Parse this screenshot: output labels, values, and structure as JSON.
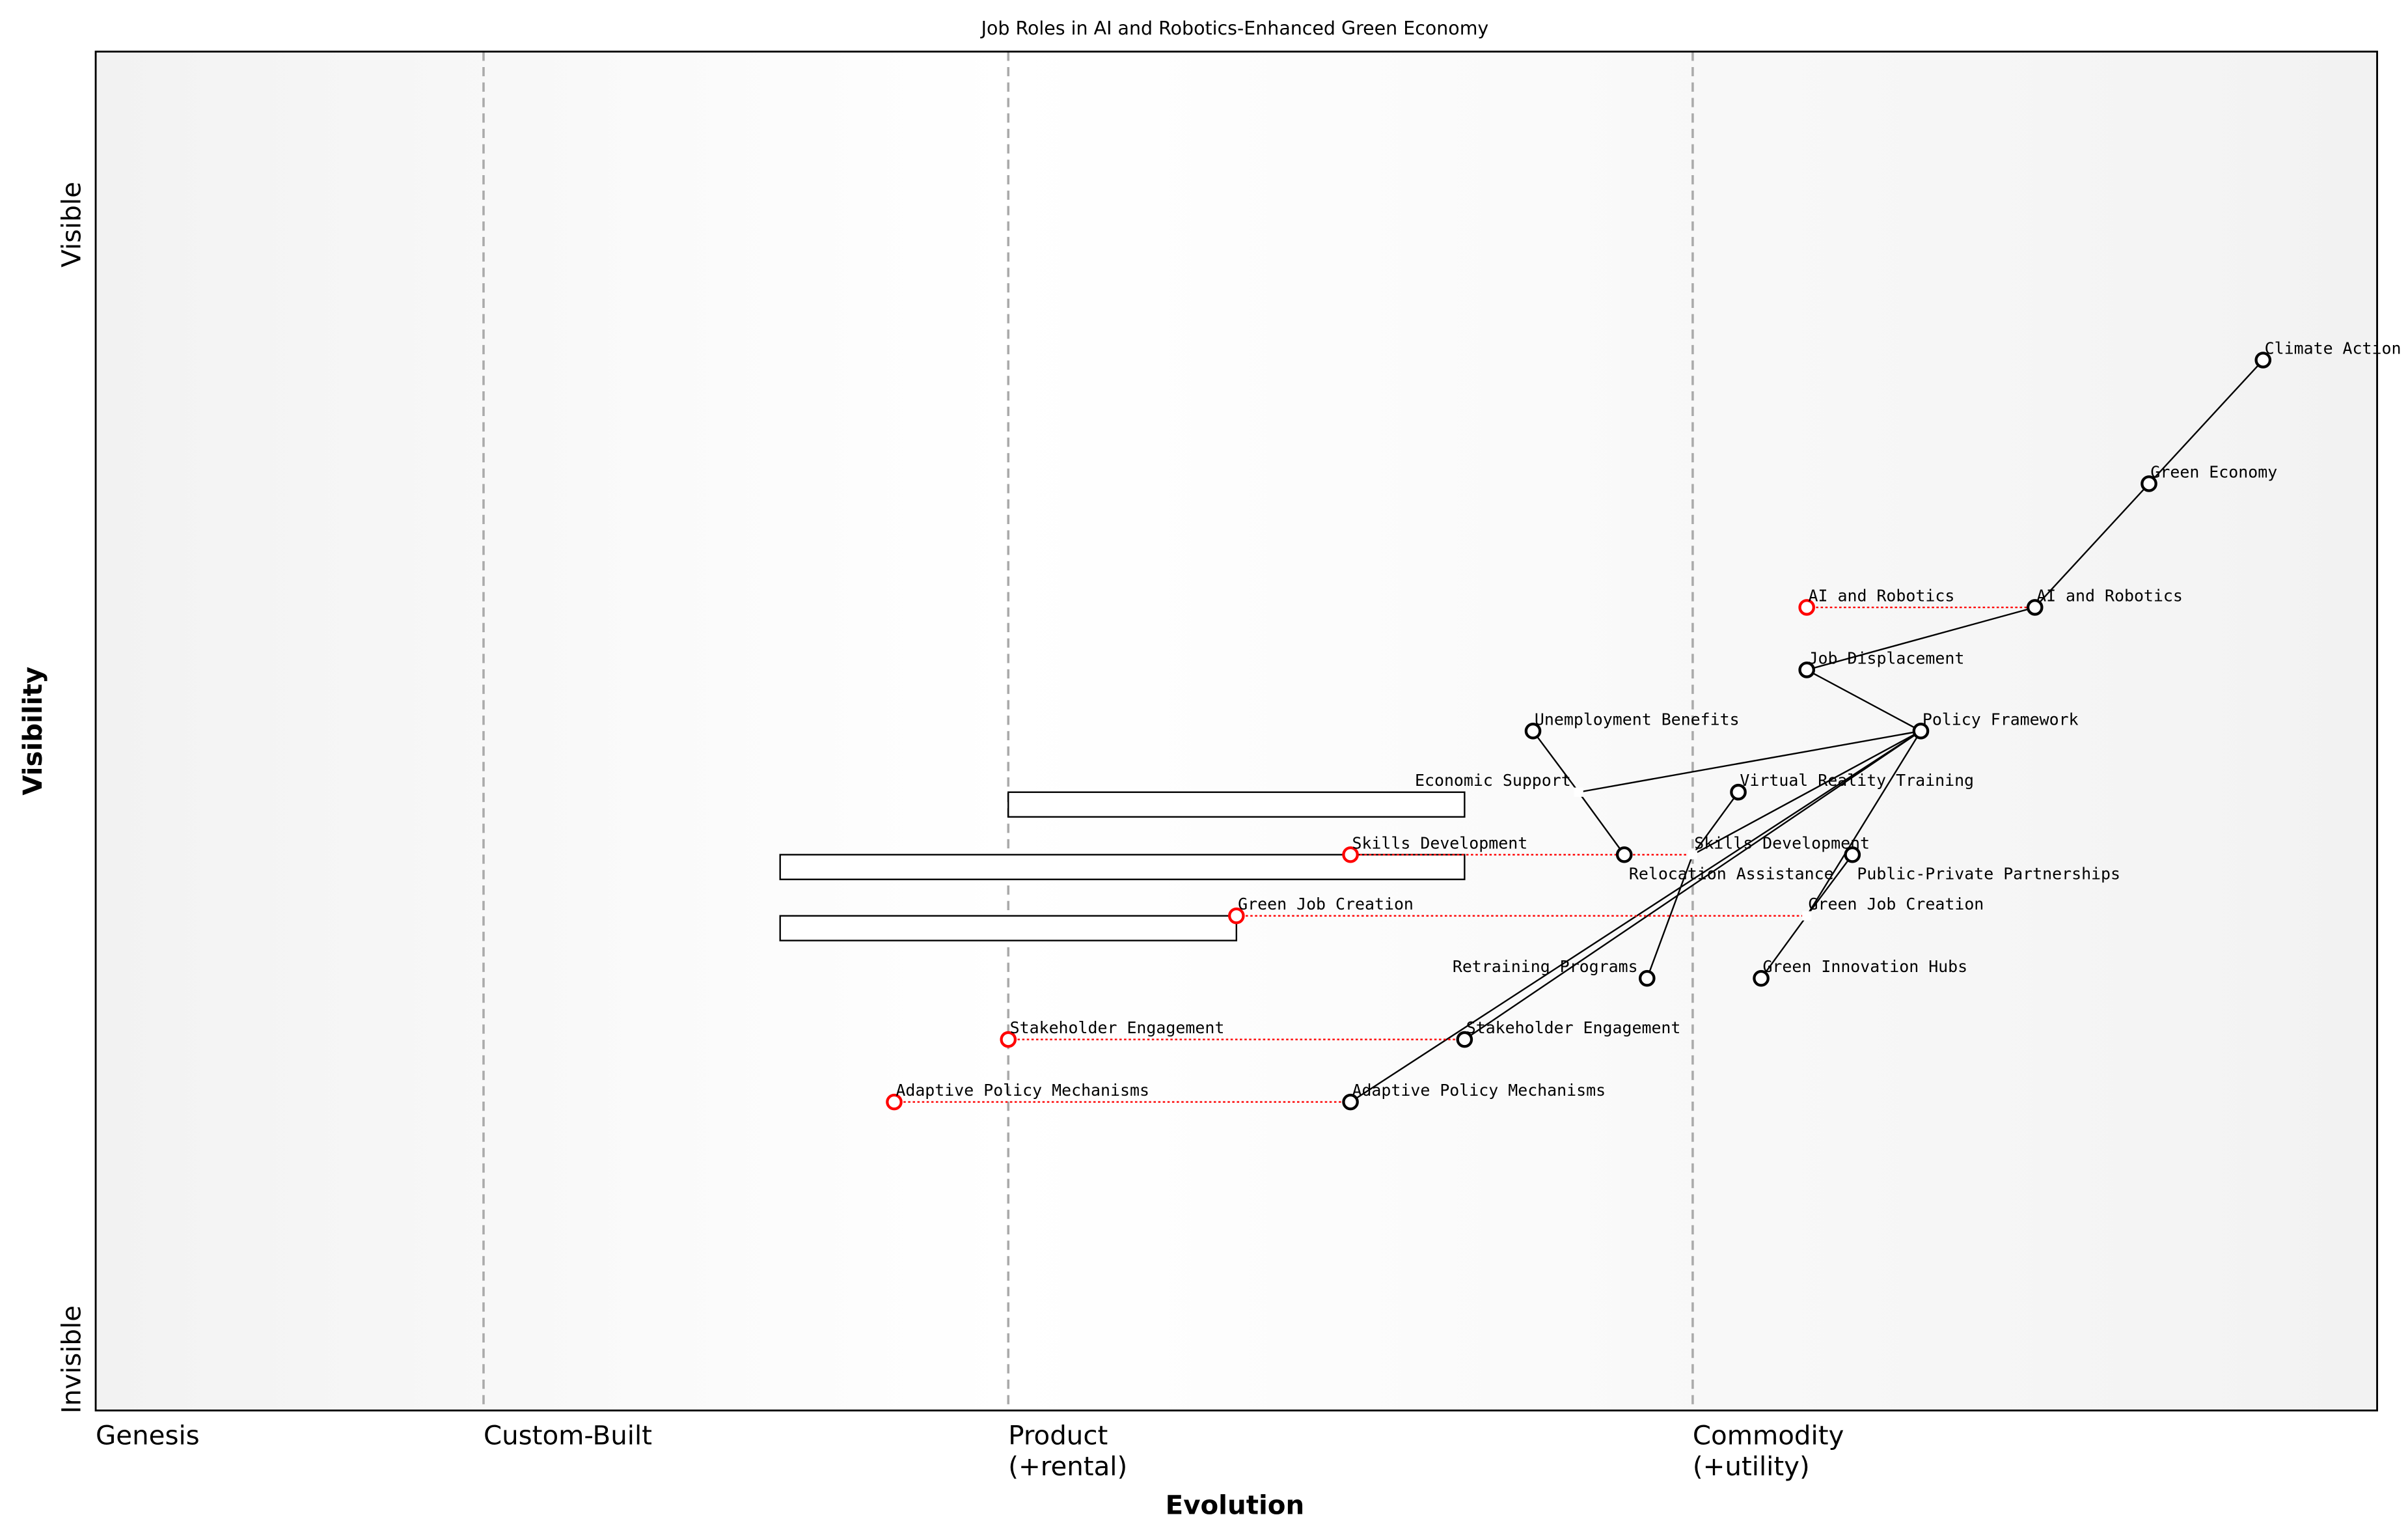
{
  "chart_data": {
    "type": "scatter",
    "subtype": "wardley-map",
    "title": "Job Roles in AI and Robotics-Enhanced Green Economy",
    "xlabel": "Evolution",
    "ylabel": "Visibility",
    "xlim": [
      0,
      1
    ],
    "ylim": [
      0,
      1
    ],
    "grid": false,
    "x_stages": [
      {
        "label": "Genesis",
        "x": 0.0
      },
      {
        "label": "Custom-Built",
        "x": 0.17
      },
      {
        "label": "Product\n(+rental)",
        "x": 0.4
      },
      {
        "label": "Commodity\n(+utility)",
        "x": 0.7
      }
    ],
    "y_ticks": {
      "top": "Visible",
      "bottom": "Invisible"
    },
    "colors": {
      "node": "#000000",
      "evolve": "#ff0000",
      "stage_line": "#aaaaaa"
    },
    "components": [
      {
        "name": "Climate Action",
        "x": 0.95,
        "y": 0.773,
        "marker": true
      },
      {
        "name": "Green Economy",
        "x": 0.9,
        "y": 0.682,
        "marker": true
      },
      {
        "name": "AI and Robotics",
        "x": 0.85,
        "y": 0.591,
        "marker": true
      },
      {
        "name": "Job Displacement",
        "x": 0.75,
        "y": 0.545,
        "marker": true
      },
      {
        "name": "Policy Framework",
        "x": 0.8,
        "y": 0.5,
        "marker": true
      },
      {
        "name": "Unemployment Benefits",
        "x": 0.63,
        "y": 0.5,
        "marker": true
      },
      {
        "name": "Economic Support",
        "x": 0.65,
        "y": 0.455,
        "marker": false
      },
      {
        "name": "Virtual Reality Training",
        "x": 0.72,
        "y": 0.455,
        "marker": true
      },
      {
        "name": "Relocation Assistance",
        "x": 0.67,
        "y": 0.409,
        "marker": true
      },
      {
        "name": "Skills Development",
        "x": 0.7,
        "y": 0.409,
        "marker": false
      },
      {
        "name": "Public-Private Partnerships",
        "x": 0.77,
        "y": 0.409,
        "marker": true
      },
      {
        "name": "Green Job Creation",
        "x": 0.75,
        "y": 0.364,
        "marker": false
      },
      {
        "name": "Retraining Programs",
        "x": 0.68,
        "y": 0.318,
        "marker": true
      },
      {
        "name": "Green Innovation Hubs",
        "x": 0.73,
        "y": 0.318,
        "marker": true
      },
      {
        "name": "Stakeholder Engagement",
        "x": 0.6,
        "y": 0.273,
        "marker": true
      },
      {
        "name": "Adaptive Policy Mechanisms",
        "x": 0.55,
        "y": 0.227,
        "marker": true
      }
    ],
    "evolutions": [
      {
        "name": "AI and Robotics",
        "from_x": 0.85,
        "to_x": 0.75,
        "y": 0.591
      },
      {
        "name": "Skills Development",
        "from_x": 0.7,
        "to_x": 0.55,
        "y": 0.409
      },
      {
        "name": "Green Job Creation",
        "from_x": 0.75,
        "to_x": 0.5,
        "y": 0.364
      },
      {
        "name": "Stakeholder Engagement",
        "from_x": 0.6,
        "to_x": 0.4,
        "y": 0.273
      },
      {
        "name": "Adaptive Policy Mechanisms",
        "from_x": 0.55,
        "to_x": 0.35,
        "y": 0.227
      }
    ],
    "pipelines": [
      {
        "y": 0.455,
        "x_start": 0.4,
        "x_end": 0.6
      },
      {
        "y": 0.409,
        "x_start": 0.3,
        "x_end": 0.6
      },
      {
        "y": 0.364,
        "x_start": 0.3,
        "x_end": 0.5
      }
    ],
    "links": [
      [
        "Climate Action",
        "Green Economy"
      ],
      [
        "Green Economy",
        "AI and Robotics"
      ],
      [
        "AI and Robotics",
        "Job Displacement"
      ],
      [
        "Job Displacement",
        "Policy Framework"
      ],
      [
        "Policy Framework",
        "Economic Support"
      ],
      [
        "Policy Framework",
        "Skills Development"
      ],
      [
        "Policy Framework",
        "Stakeholder Engagement"
      ],
      [
        "Policy Framework",
        "Adaptive Policy Mechanisms"
      ],
      [
        "Policy Framework",
        "Green Job Creation"
      ],
      [
        "Public-Private Partnerships",
        "Green Job Creation"
      ],
      [
        "Green Job Creation",
        "Green Innovation Hubs"
      ],
      [
        "Unemployment Benefits",
        "Economic Support"
      ],
      [
        "Economic Support",
        "Relocation Assistance"
      ],
      [
        "Virtual Reality Training",
        "Skills Development"
      ],
      [
        "Skills Development",
        "Retraining Programs"
      ]
    ]
  }
}
